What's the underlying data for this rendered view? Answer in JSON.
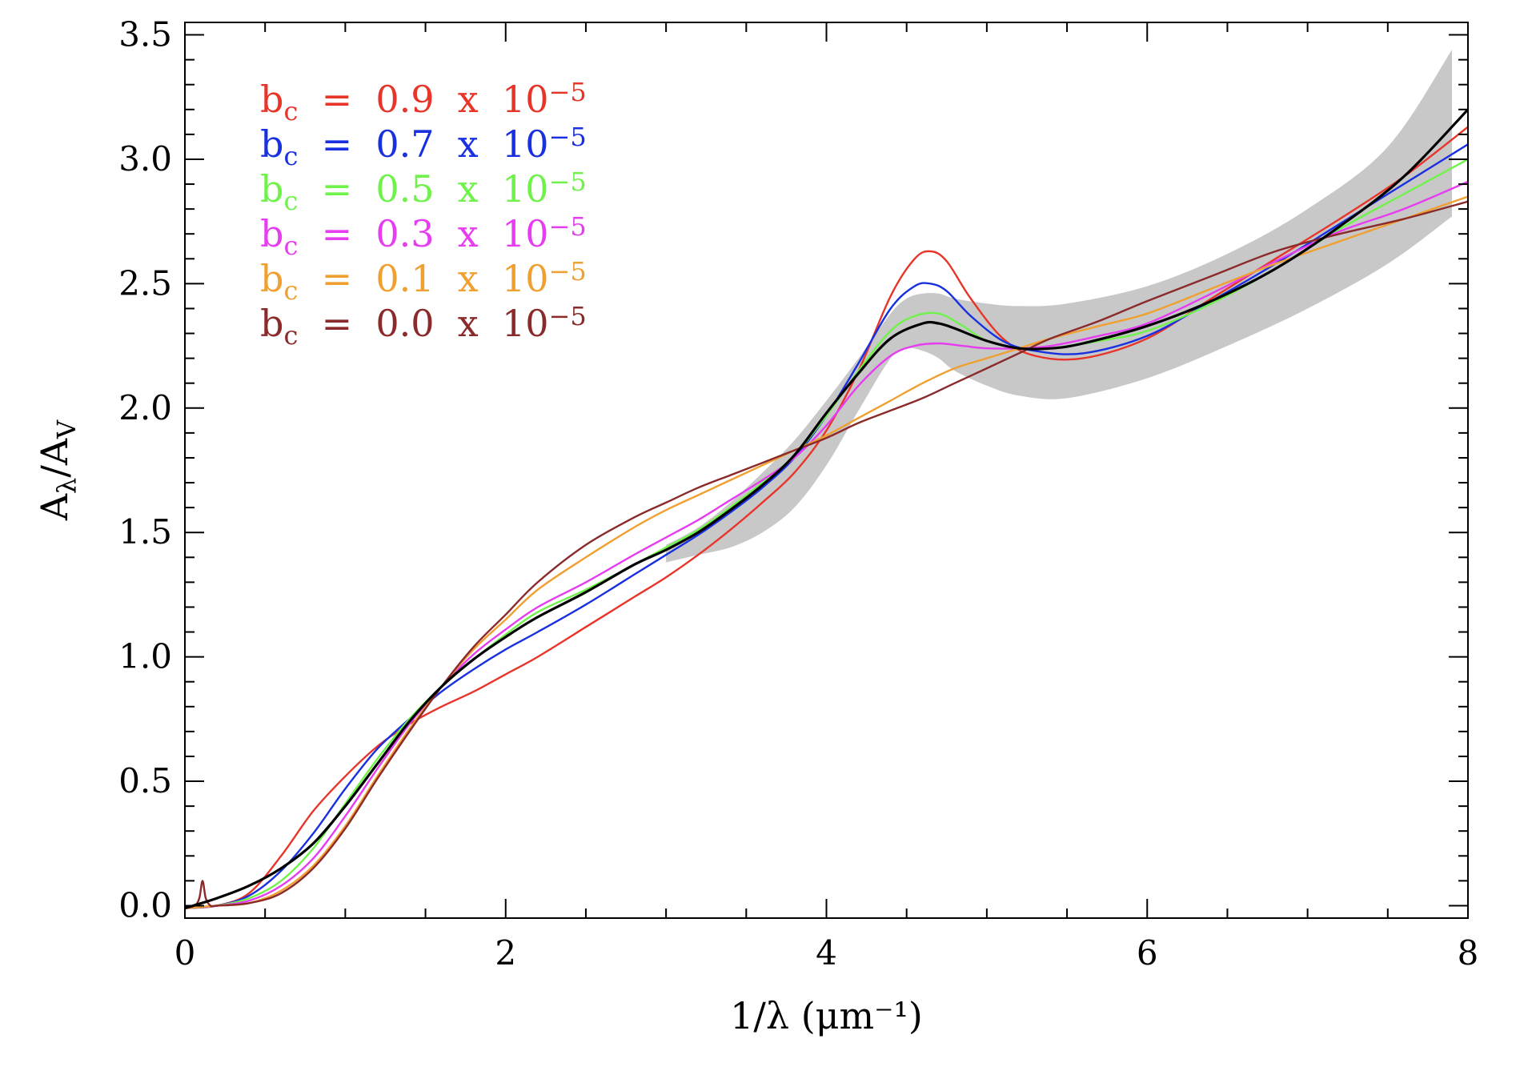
{
  "chart_data": {
    "type": "line",
    "xlabel": "1/λ (μm⁻¹)",
    "ylabel": "Aλ/AV",
    "xlim": [
      0,
      8
    ],
    "ylim": [
      -0.05,
      3.55
    ],
    "x_ticks": [
      0,
      2,
      4,
      6,
      8
    ],
    "x_tick_labels": [
      "0",
      "2",
      "4",
      "6",
      "8"
    ],
    "y_ticks": [
      0.0,
      0.5,
      1.0,
      1.5,
      2.0,
      2.5,
      3.0,
      3.5
    ],
    "y_tick_labels": [
      "0.0",
      "0.5",
      "1.0",
      "1.5",
      "2.0",
      "2.5",
      "3.0",
      "3.5"
    ],
    "legend_position": "top-left",
    "grid": false,
    "band": {
      "color": "#c8c8c8",
      "x": [
        3.0,
        3.2,
        3.4,
        3.6,
        3.8,
        4.0,
        4.2,
        4.4,
        4.5,
        4.6,
        4.7,
        4.8,
        5.0,
        5.2,
        5.5,
        6.0,
        6.5,
        7.0,
        7.5,
        7.9
      ],
      "upper": [
        1.45,
        1.52,
        1.62,
        1.74,
        1.87,
        2.03,
        2.2,
        2.38,
        2.44,
        2.46,
        2.46,
        2.44,
        2.42,
        2.41,
        2.42,
        2.49,
        2.62,
        2.8,
        3.05,
        3.44
      ],
      "lower": [
        1.38,
        1.41,
        1.44,
        1.5,
        1.6,
        1.77,
        1.99,
        2.2,
        2.24,
        2.23,
        2.2,
        2.15,
        2.09,
        2.05,
        2.04,
        2.12,
        2.25,
        2.4,
        2.58,
        2.77
      ]
    },
    "series": [
      {
        "name": "",
        "color": "#000000",
        "x": [
          0,
          0.2,
          0.4,
          0.6,
          0.8,
          1.0,
          1.2,
          1.4,
          1.6,
          1.8,
          2.0,
          2.2,
          2.5,
          2.8,
          3.0,
          3.2,
          3.4,
          3.6,
          3.8,
          4.0,
          4.2,
          4.4,
          4.6,
          4.7,
          4.8,
          5.0,
          5.2,
          5.4,
          5.6,
          6.0,
          6.4,
          6.8,
          7.2,
          7.6,
          8.0
        ],
        "values": [
          -0.01,
          0.03,
          0.08,
          0.15,
          0.25,
          0.4,
          0.57,
          0.74,
          0.88,
          0.99,
          1.08,
          1.16,
          1.26,
          1.37,
          1.43,
          1.5,
          1.59,
          1.69,
          1.81,
          1.98,
          2.14,
          2.28,
          2.34,
          2.34,
          2.32,
          2.27,
          2.24,
          2.24,
          2.26,
          2.33,
          2.43,
          2.56,
          2.73,
          2.93,
          3.2
        ]
      },
      {
        "name": "bc = 0.9 x 10⁻⁵",
        "color": "#e8352a",
        "x": [
          0,
          0.2,
          0.4,
          0.6,
          0.8,
          1.0,
          1.2,
          1.4,
          1.6,
          1.8,
          2.0,
          2.2,
          2.5,
          2.8,
          3.0,
          3.2,
          3.4,
          3.6,
          3.8,
          4.0,
          4.2,
          4.4,
          4.55,
          4.65,
          4.75,
          4.9,
          5.1,
          5.3,
          5.6,
          6.0,
          6.4,
          6.8,
          7.2,
          7.6,
          8.0
        ],
        "values": [
          -0.01,
          0.0,
          0.05,
          0.2,
          0.38,
          0.52,
          0.64,
          0.73,
          0.8,
          0.86,
          0.93,
          1.0,
          1.12,
          1.24,
          1.32,
          1.41,
          1.51,
          1.62,
          1.74,
          1.91,
          2.15,
          2.45,
          2.6,
          2.63,
          2.59,
          2.44,
          2.28,
          2.21,
          2.2,
          2.28,
          2.44,
          2.6,
          2.76,
          2.93,
          3.13
        ]
      },
      {
        "name": "bc = 0.7 x 10⁻⁵",
        "color": "#1930e0",
        "x": [
          0,
          0.2,
          0.4,
          0.6,
          0.8,
          1.0,
          1.2,
          1.4,
          1.6,
          1.8,
          2.0,
          2.2,
          2.5,
          2.8,
          3.0,
          3.2,
          3.4,
          3.6,
          3.8,
          4.0,
          4.2,
          4.4,
          4.55,
          4.65,
          4.75,
          4.9,
          5.1,
          5.3,
          5.6,
          6.0,
          6.4,
          6.8,
          7.2,
          7.6,
          8.0
        ],
        "values": [
          -0.01,
          0.0,
          0.04,
          0.14,
          0.29,
          0.47,
          0.63,
          0.75,
          0.86,
          0.95,
          1.03,
          1.1,
          1.21,
          1.33,
          1.41,
          1.49,
          1.58,
          1.68,
          1.8,
          1.97,
          2.18,
          2.4,
          2.49,
          2.5,
          2.47,
          2.37,
          2.27,
          2.23,
          2.22,
          2.29,
          2.43,
          2.58,
          2.74,
          2.9,
          3.06
        ]
      },
      {
        "name": "bc = 0.5 x 10⁻⁵",
        "color": "#6ff24a",
        "x": [
          0,
          0.2,
          0.4,
          0.6,
          0.8,
          1.0,
          1.2,
          1.4,
          1.6,
          1.8,
          2.0,
          2.2,
          2.5,
          2.8,
          3.0,
          3.2,
          3.4,
          3.6,
          3.8,
          4.0,
          4.2,
          4.4,
          4.55,
          4.7,
          4.85,
          5.0,
          5.2,
          5.4,
          5.7,
          6.0,
          6.4,
          6.8,
          7.2,
          7.6,
          8.0
        ],
        "values": [
          -0.01,
          0.0,
          0.03,
          0.1,
          0.23,
          0.41,
          0.59,
          0.75,
          0.88,
          0.99,
          1.09,
          1.18,
          1.27,
          1.37,
          1.44,
          1.51,
          1.6,
          1.7,
          1.81,
          1.97,
          2.15,
          2.31,
          2.37,
          2.38,
          2.33,
          2.27,
          2.24,
          2.24,
          2.27,
          2.31,
          2.42,
          2.56,
          2.72,
          2.86,
          3.0
        ]
      },
      {
        "name": "bc = 0.3 x 10⁻⁵",
        "color": "#e63df0",
        "x": [
          0,
          0.2,
          0.4,
          0.6,
          0.8,
          1.0,
          1.2,
          1.4,
          1.6,
          1.8,
          2.0,
          2.2,
          2.5,
          2.8,
          3.0,
          3.2,
          3.4,
          3.6,
          3.8,
          4.0,
          4.2,
          4.4,
          4.55,
          4.7,
          4.85,
          5.0,
          5.2,
          5.4,
          5.7,
          6.0,
          6.4,
          6.8,
          7.2,
          7.6,
          8.0
        ],
        "values": [
          -0.01,
          0.0,
          0.02,
          0.08,
          0.19,
          0.36,
          0.55,
          0.73,
          0.88,
          1.01,
          1.11,
          1.2,
          1.3,
          1.41,
          1.48,
          1.55,
          1.63,
          1.71,
          1.8,
          1.93,
          2.09,
          2.21,
          2.25,
          2.26,
          2.25,
          2.24,
          2.24,
          2.25,
          2.29,
          2.34,
          2.46,
          2.59,
          2.71,
          2.8,
          2.91
        ]
      },
      {
        "name": "bc = 0.1 x 10⁻⁵",
        "color": "#f0a030",
        "x": [
          0,
          0.2,
          0.4,
          0.6,
          0.8,
          1.0,
          1.2,
          1.4,
          1.6,
          1.8,
          2.0,
          2.2,
          2.5,
          2.8,
          3.0,
          3.2,
          3.4,
          3.6,
          3.8,
          4.0,
          4.2,
          4.4,
          4.6,
          4.8,
          5.0,
          5.2,
          5.4,
          5.7,
          6.0,
          6.4,
          6.8,
          7.2,
          7.6,
          8.0
        ],
        "values": [
          -0.01,
          0.0,
          0.01,
          0.06,
          0.16,
          0.32,
          0.52,
          0.71,
          0.88,
          1.03,
          1.15,
          1.27,
          1.4,
          1.52,
          1.59,
          1.65,
          1.71,
          1.77,
          1.83,
          1.89,
          1.96,
          2.03,
          2.1,
          2.16,
          2.2,
          2.24,
          2.28,
          2.33,
          2.38,
          2.48,
          2.58,
          2.67,
          2.76,
          2.85
        ]
      },
      {
        "name": "bc = 0.0 x 10⁻⁵",
        "color": "#8b2a2a",
        "x": [
          0,
          0.06,
          0.09,
          0.11,
          0.13,
          0.16,
          0.2,
          0.4,
          0.6,
          0.8,
          1.0,
          1.2,
          1.4,
          1.6,
          1.8,
          2.0,
          2.2,
          2.5,
          2.8,
          3.0,
          3.2,
          3.4,
          3.6,
          3.8,
          4.0,
          4.2,
          4.4,
          4.6,
          4.8,
          5.0,
          5.2,
          5.4,
          5.7,
          6.0,
          6.4,
          6.8,
          7.2,
          7.6,
          8.0
        ],
        "values": [
          -0.01,
          0.0,
          0.03,
          0.1,
          0.03,
          0.0,
          0.0,
          0.01,
          0.05,
          0.15,
          0.31,
          0.51,
          0.7,
          0.88,
          1.04,
          1.17,
          1.3,
          1.45,
          1.56,
          1.62,
          1.68,
          1.73,
          1.78,
          1.83,
          1.88,
          1.94,
          1.99,
          2.04,
          2.1,
          2.16,
          2.22,
          2.28,
          2.35,
          2.43,
          2.53,
          2.63,
          2.7,
          2.76,
          2.83
        ]
      }
    ],
    "legend": [
      {
        "b": "b",
        "sub": "c",
        "mid": " = 0.9 x 10",
        "exp": "−5",
        "color": "#e8352a"
      },
      {
        "b": "b",
        "sub": "c",
        "mid": " = 0.7 x 10",
        "exp": "−5",
        "color": "#1930e0"
      },
      {
        "b": "b",
        "sub": "c",
        "mid": " = 0.5 x 10",
        "exp": "−5",
        "color": "#6ff24a"
      },
      {
        "b": "b",
        "sub": "c",
        "mid": " = 0.3 x 10",
        "exp": "−5",
        "color": "#e63df0"
      },
      {
        "b": "b",
        "sub": "c",
        "mid": " = 0.1 x 10",
        "exp": "−5",
        "color": "#f0a030"
      },
      {
        "b": "b",
        "sub": "c",
        "mid": " = 0.0 x 10",
        "exp": "−5",
        "color": "#8b2a2a"
      }
    ]
  }
}
